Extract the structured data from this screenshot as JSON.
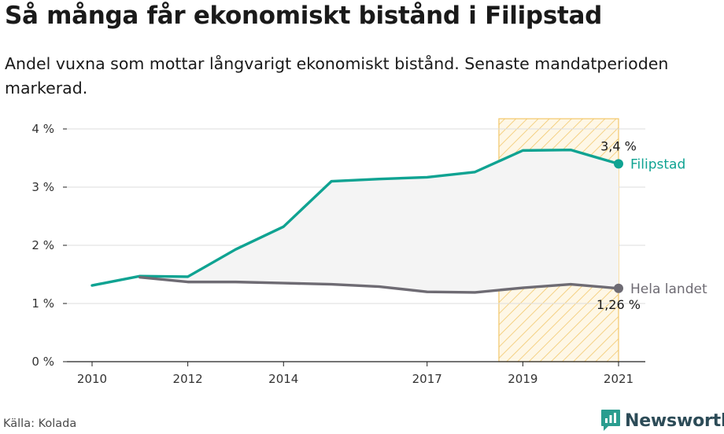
{
  "title": "Så många får ekonomiskt bistånd i Filipstad",
  "subtitle": "Andel vuxna som mottar långvarigt ekonomiskt bistånd. Senaste mandatperioden markerad.",
  "source": "Källa: Kolada",
  "brand": {
    "name": "Newsworthy",
    "icon": "newsworthy-logo-icon"
  },
  "colors": {
    "filipstad": "#0fa392",
    "hela_landet": "#6e6b73",
    "highlight_fill": "#fbe8b8",
    "highlight_stripe": "#f2c76b",
    "between_fill": "#f4f4f4",
    "axis": "#222222",
    "grid": "#dddddd"
  },
  "chart_data": {
    "type": "line",
    "x": [
      2010,
      2011,
      2012,
      2013,
      2014,
      2015,
      2016,
      2017,
      2018,
      2019,
      2020,
      2021
    ],
    "xticks": [
      2010,
      2012,
      2014,
      2017,
      2019,
      2021
    ],
    "xlim": [
      2010,
      2021
    ],
    "ylim": [
      0,
      4
    ],
    "yticks": [
      {
        "value": 0,
        "label": "0 %"
      },
      {
        "value": 1,
        "label": "1 %"
      },
      {
        "value": 2,
        "label": "2 %"
      },
      {
        "value": 3,
        "label": "3 %"
      },
      {
        "value": 4,
        "label": "4 %"
      }
    ],
    "grid": true,
    "highlight": {
      "label": "Senaste mandatperioden",
      "from": 2018.5,
      "to": 2021
    },
    "series": [
      {
        "name": "Filipstad",
        "color": "#0fa392",
        "values": [
          1.31,
          1.47,
          1.46,
          1.93,
          2.32,
          3.1,
          3.14,
          3.17,
          3.26,
          3.63,
          3.64,
          3.4
        ],
        "end_value_label": "3,4 %"
      },
      {
        "name": "Hela landet",
        "color": "#6e6b73",
        "values": [
          null,
          1.45,
          1.37,
          1.37,
          1.35,
          1.33,
          1.29,
          1.2,
          1.19,
          1.27,
          1.33,
          1.26
        ],
        "end_value_label": "1,26 %"
      }
    ]
  }
}
